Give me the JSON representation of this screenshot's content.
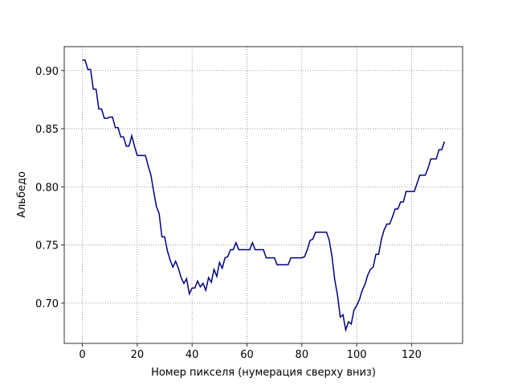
{
  "chart_data": {
    "type": "line",
    "x_label": "Номер пикселя (нумерация сверху вниз)",
    "y_label": "Альбедо",
    "x": [
      0,
      1,
      2,
      3,
      4,
      5,
      6,
      7,
      8,
      9,
      10,
      11,
      12,
      13,
      14,
      15,
      16,
      17,
      18,
      19,
      20,
      21,
      22,
      23,
      24,
      25,
      26,
      27,
      28,
      29,
      30,
      31,
      32,
      33,
      34,
      35,
      36,
      37,
      38,
      39,
      40,
      41,
      42,
      43,
      44,
      45,
      46,
      47,
      48,
      49,
      50,
      51,
      52,
      53,
      54,
      55,
      56,
      57,
      58,
      59,
      60,
      61,
      62,
      63,
      64,
      65,
      66,
      67,
      68,
      69,
      70,
      71,
      72,
      73,
      74,
      75,
      76,
      77,
      78,
      79,
      80,
      81,
      82,
      83,
      84,
      85,
      86,
      87,
      88,
      89,
      90,
      91,
      92,
      93,
      94,
      95,
      96,
      97,
      98,
      99,
      100,
      101,
      102,
      103,
      104,
      105,
      106,
      107,
      108,
      109,
      110,
      111,
      112,
      113,
      114,
      115,
      116,
      117,
      118,
      119,
      120,
      121,
      122,
      123,
      124,
      125,
      126,
      127,
      128,
      129,
      130,
      131,
      132
    ],
    "series": [
      {
        "color": "#000080",
        "values": [
          0.909,
          0.909,
          0.901,
          0.901,
          0.884,
          0.884,
          0.867,
          0.867,
          0.859,
          0.859,
          0.86,
          0.86,
          0.851,
          0.851,
          0.843,
          0.843,
          0.835,
          0.835,
          0.844,
          0.835,
          0.827,
          0.827,
          0.827,
          0.827,
          0.818,
          0.81,
          0.796,
          0.783,
          0.777,
          0.757,
          0.757,
          0.745,
          0.737,
          0.731,
          0.736,
          0.73,
          0.722,
          0.717,
          0.721,
          0.708,
          0.713,
          0.713,
          0.719,
          0.714,
          0.717,
          0.711,
          0.722,
          0.718,
          0.729,
          0.723,
          0.735,
          0.73,
          0.739,
          0.74,
          0.746,
          0.746,
          0.752,
          0.746,
          0.746,
          0.746,
          0.746,
          0.746,
          0.752,
          0.746,
          0.746,
          0.746,
          0.746,
          0.739,
          0.739,
          0.739,
          0.739,
          0.733,
          0.733,
          0.733,
          0.733,
          0.733,
          0.739,
          0.739,
          0.739,
          0.739,
          0.739,
          0.74,
          0.746,
          0.754,
          0.755,
          0.761,
          0.761,
          0.761,
          0.761,
          0.761,
          0.754,
          0.74,
          0.72,
          0.707,
          0.688,
          0.69,
          0.677,
          0.684,
          0.682,
          0.694,
          0.698,
          0.703,
          0.711,
          0.716,
          0.724,
          0.729,
          0.731,
          0.742,
          0.742,
          0.755,
          0.763,
          0.768,
          0.768,
          0.774,
          0.781,
          0.781,
          0.787,
          0.787,
          0.796,
          0.796,
          0.796,
          0.796,
          0.803,
          0.81,
          0.81,
          0.81,
          0.816,
          0.824,
          0.824,
          0.824,
          0.832,
          0.832,
          0.839
        ]
      }
    ],
    "xlim": [
      -6.6,
      138.6
    ],
    "ylim": [
      0.6654,
      0.9206
    ],
    "xticks": [
      0,
      20,
      40,
      60,
      80,
      100,
      120
    ],
    "yticks": [
      {
        "value": 0.7,
        "label": "0.70"
      },
      0.75,
      {
        "value": 0.8,
        "label": "0.80"
      },
      0.85,
      {
        "value": 0.9,
        "label": "0.90"
      }
    ],
    "grid": true
  }
}
